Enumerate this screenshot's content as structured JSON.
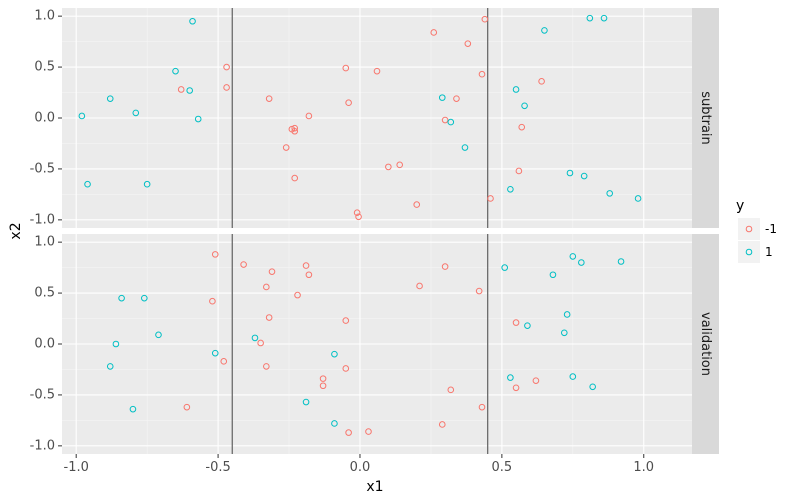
{
  "chart_data": {
    "type": "scatter",
    "xlabel": "x1",
    "ylabel": "x2",
    "xlim": [
      -1.05,
      1.17
    ],
    "ylim": [
      -1.08,
      1.08
    ],
    "x_ticks": [
      -1.0,
      -0.5,
      0.0,
      0.5,
      1.0
    ],
    "x_tick_labels": [
      "-1.0",
      "-0.5",
      "0.0",
      "0.5",
      "1.0"
    ],
    "y_ticks": [
      -1.0,
      -0.5,
      0.0,
      0.5,
      1.0
    ],
    "y_tick_labels": [
      "-1.0",
      "-0.5",
      "0.0",
      "0.5",
      "1.0"
    ],
    "vlines": [
      -0.45,
      0.45
    ],
    "grid": true,
    "legend": {
      "title": "y",
      "position": "right",
      "entries": [
        {
          "label": "-1",
          "color": "#F8766D"
        },
        {
          "label": "1",
          "color": "#00BFC4"
        }
      ]
    },
    "panels": [
      {
        "label": "subtrain",
        "points": [
          {
            "x": -0.98,
            "y": 0.02,
            "y_class": "1"
          },
          {
            "x": -0.96,
            "y": -0.65,
            "y_class": "1"
          },
          {
            "x": -0.88,
            "y": 0.19,
            "y_class": "1"
          },
          {
            "x": -0.79,
            "y": 0.05,
            "y_class": "1"
          },
          {
            "x": -0.75,
            "y": -0.65,
            "y_class": "1"
          },
          {
            "x": -0.65,
            "y": 0.46,
            "y_class": "1"
          },
          {
            "x": -0.59,
            "y": 0.95,
            "y_class": "1"
          },
          {
            "x": -0.6,
            "y": 0.27,
            "y_class": "1"
          },
          {
            "x": -0.57,
            "y": -0.01,
            "y_class": "1"
          },
          {
            "x": -0.63,
            "y": 0.28,
            "y_class": "-1"
          },
          {
            "x": -0.47,
            "y": 0.5,
            "y_class": "-1"
          },
          {
            "x": -0.47,
            "y": 0.3,
            "y_class": "-1"
          },
          {
            "x": -0.32,
            "y": 0.19,
            "y_class": "-1"
          },
          {
            "x": -0.26,
            "y": -0.29,
            "y_class": "-1"
          },
          {
            "x": -0.24,
            "y": -0.11,
            "y_class": "-1"
          },
          {
            "x": -0.23,
            "y": -0.13,
            "y_class": "-1"
          },
          {
            "x": -0.23,
            "y": -0.1,
            "y_class": "-1"
          },
          {
            "x": -0.23,
            "y": -0.59,
            "y_class": "-1"
          },
          {
            "x": -0.18,
            "y": 0.02,
            "y_class": "-1"
          },
          {
            "x": -0.05,
            "y": 0.49,
            "y_class": "-1"
          },
          {
            "x": -0.04,
            "y": 0.15,
            "y_class": "-1"
          },
          {
            "x": -0.01,
            "y": -0.93,
            "y_class": "-1"
          },
          {
            "x": -0.005,
            "y": -0.97,
            "y_class": "-1"
          },
          {
            "x": 0.06,
            "y": 0.46,
            "y_class": "-1"
          },
          {
            "x": 0.1,
            "y": -0.48,
            "y_class": "-1"
          },
          {
            "x": 0.14,
            "y": -0.46,
            "y_class": "-1"
          },
          {
            "x": 0.2,
            "y": -0.85,
            "y_class": "-1"
          },
          {
            "x": 0.26,
            "y": 0.84,
            "y_class": "-1"
          },
          {
            "x": 0.3,
            "y": -0.02,
            "y_class": "-1"
          },
          {
            "x": 0.34,
            "y": 0.19,
            "y_class": "-1"
          },
          {
            "x": 0.38,
            "y": 0.73,
            "y_class": "-1"
          },
          {
            "x": 0.43,
            "y": 0.43,
            "y_class": "-1"
          },
          {
            "x": 0.44,
            "y": 0.97,
            "y_class": "-1"
          },
          {
            "x": 0.46,
            "y": -0.79,
            "y_class": "-1"
          },
          {
            "x": 0.29,
            "y": 0.2,
            "y_class": "1"
          },
          {
            "x": 0.32,
            "y": -0.04,
            "y_class": "1"
          },
          {
            "x": 0.37,
            "y": -0.29,
            "y_class": "1"
          },
          {
            "x": 0.53,
            "y": -0.7,
            "y_class": "1"
          },
          {
            "x": 0.55,
            "y": 0.28,
            "y_class": "1"
          },
          {
            "x": 0.58,
            "y": 0.12,
            "y_class": "1"
          },
          {
            "x": 0.56,
            "y": -0.52,
            "y_class": "-1"
          },
          {
            "x": 0.57,
            "y": -0.09,
            "y_class": "-1"
          },
          {
            "x": 0.64,
            "y": 0.36,
            "y_class": "-1"
          },
          {
            "x": 0.65,
            "y": 0.86,
            "y_class": "1"
          },
          {
            "x": 0.74,
            "y": -0.54,
            "y_class": "1"
          },
          {
            "x": 0.79,
            "y": -0.57,
            "y_class": "1"
          },
          {
            "x": 0.81,
            "y": 0.98,
            "y_class": "1"
          },
          {
            "x": 0.86,
            "y": 0.98,
            "y_class": "1"
          },
          {
            "x": 0.88,
            "y": -0.74,
            "y_class": "1"
          },
          {
            "x": 0.98,
            "y": -0.79,
            "y_class": "1"
          }
        ]
      },
      {
        "label": "validation",
        "points": [
          {
            "x": -0.88,
            "y": -0.22,
            "y_class": "1"
          },
          {
            "x": -0.86,
            "y": 0.0,
            "y_class": "1"
          },
          {
            "x": -0.84,
            "y": 0.45,
            "y_class": "1"
          },
          {
            "x": -0.8,
            "y": -0.64,
            "y_class": "1"
          },
          {
            "x": -0.76,
            "y": 0.45,
            "y_class": "1"
          },
          {
            "x": -0.71,
            "y": 0.09,
            "y_class": "1"
          },
          {
            "x": -0.61,
            "y": -0.62,
            "y_class": "-1"
          },
          {
            "x": -0.52,
            "y": 0.42,
            "y_class": "-1"
          },
          {
            "x": -0.51,
            "y": 0.88,
            "y_class": "-1"
          },
          {
            "x": -0.51,
            "y": -0.09,
            "y_class": "1"
          },
          {
            "x": -0.48,
            "y": -0.17,
            "y_class": "-1"
          },
          {
            "x": -0.41,
            "y": 0.78,
            "y_class": "-1"
          },
          {
            "x": -0.37,
            "y": 0.06,
            "y_class": "1"
          },
          {
            "x": -0.35,
            "y": 0.01,
            "y_class": "-1"
          },
          {
            "x": -0.33,
            "y": 0.56,
            "y_class": "-1"
          },
          {
            "x": -0.33,
            "y": -0.22,
            "y_class": "-1"
          },
          {
            "x": -0.32,
            "y": 0.26,
            "y_class": "-1"
          },
          {
            "x": -0.31,
            "y": 0.71,
            "y_class": "-1"
          },
          {
            "x": -0.22,
            "y": 0.48,
            "y_class": "-1"
          },
          {
            "x": -0.19,
            "y": 0.77,
            "y_class": "-1"
          },
          {
            "x": -0.18,
            "y": 0.68,
            "y_class": "-1"
          },
          {
            "x": -0.19,
            "y": -0.57,
            "y_class": "1"
          },
          {
            "x": -0.13,
            "y": -0.34,
            "y_class": "-1"
          },
          {
            "x": -0.13,
            "y": -0.41,
            "y_class": "-1"
          },
          {
            "x": -0.09,
            "y": -0.1,
            "y_class": "1"
          },
          {
            "x": -0.09,
            "y": -0.78,
            "y_class": "1"
          },
          {
            "x": -0.05,
            "y": 0.23,
            "y_class": "-1"
          },
          {
            "x": -0.05,
            "y": -0.24,
            "y_class": "-1"
          },
          {
            "x": -0.04,
            "y": -0.87,
            "y_class": "-1"
          },
          {
            "x": 0.03,
            "y": -0.86,
            "y_class": "-1"
          },
          {
            "x": 0.21,
            "y": 0.57,
            "y_class": "-1"
          },
          {
            "x": 0.29,
            "y": -0.79,
            "y_class": "-1"
          },
          {
            "x": 0.3,
            "y": 0.76,
            "y_class": "-1"
          },
          {
            "x": 0.32,
            "y": -0.45,
            "y_class": "-1"
          },
          {
            "x": 0.42,
            "y": 0.52,
            "y_class": "-1"
          },
          {
            "x": 0.43,
            "y": -0.62,
            "y_class": "-1"
          },
          {
            "x": 0.51,
            "y": 0.75,
            "y_class": "1"
          },
          {
            "x": 0.53,
            "y": -0.33,
            "y_class": "1"
          },
          {
            "x": 0.55,
            "y": 0.21,
            "y_class": "-1"
          },
          {
            "x": 0.55,
            "y": -0.43,
            "y_class": "-1"
          },
          {
            "x": 0.59,
            "y": 0.18,
            "y_class": "1"
          },
          {
            "x": 0.62,
            "y": -0.36,
            "y_class": "-1"
          },
          {
            "x": 0.68,
            "y": 0.68,
            "y_class": "1"
          },
          {
            "x": 0.72,
            "y": 0.11,
            "y_class": "1"
          },
          {
            "x": 0.73,
            "y": 0.29,
            "y_class": "1"
          },
          {
            "x": 0.75,
            "y": 0.86,
            "y_class": "1"
          },
          {
            "x": 0.75,
            "y": -0.32,
            "y_class": "1"
          },
          {
            "x": 0.78,
            "y": 0.8,
            "y_class": "1"
          },
          {
            "x": 0.82,
            "y": -0.42,
            "y_class": "1"
          },
          {
            "x": 0.92,
            "y": 0.81,
            "y_class": "1"
          }
        ]
      }
    ]
  }
}
